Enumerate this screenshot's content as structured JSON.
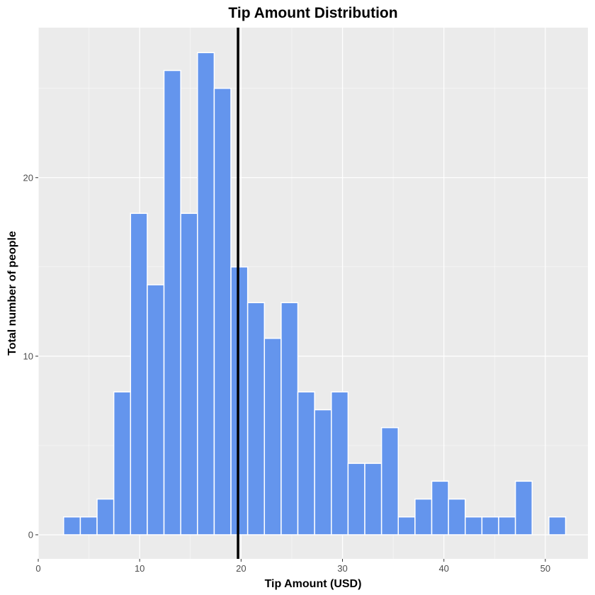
{
  "chart_data": {
    "type": "bar",
    "title": "Tip Amount Distribution",
    "xlabel": "Tip Amount (USD)",
    "ylabel": "Total number of people",
    "xlim": [
      0,
      54.2
    ],
    "ylim": [
      -1.35,
      28.4
    ],
    "x_ticks": [
      0,
      10,
      20,
      30,
      40,
      50
    ],
    "y_ticks": [
      0,
      10,
      20
    ],
    "bin_width": 1.65,
    "bin_starts": [
      2.5,
      4.15,
      5.8,
      7.45,
      9.1,
      10.75,
      12.4,
      14.05,
      15.7,
      17.35,
      19.0,
      20.65,
      22.3,
      23.95,
      25.6,
      27.25,
      28.9,
      30.55,
      32.2,
      33.85,
      35.5,
      37.15,
      38.8,
      40.45,
      42.1,
      43.75,
      45.4,
      47.05,
      48.7,
      50.35
    ],
    "values": [
      1,
      1,
      2,
      8,
      18,
      14,
      26,
      18,
      27,
      25,
      15,
      13,
      11,
      13,
      8,
      7,
      8,
      4,
      4,
      6,
      1,
      2,
      3,
      2,
      1,
      1,
      1,
      3,
      0,
      1
    ],
    "vline": 19.7,
    "grid": true,
    "colors": {
      "bar_fill": "#6495ED",
      "bar_border": "#ffffff",
      "panel": "#EBEBEB",
      "grid": "#ffffff",
      "vline": "#000000"
    }
  }
}
